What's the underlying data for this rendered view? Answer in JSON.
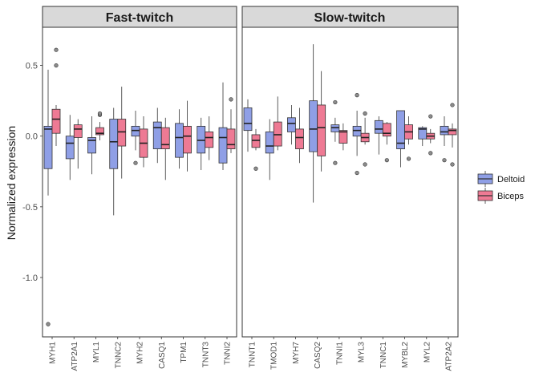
{
  "chart_data": {
    "type": "boxplot",
    "ylabel": "Normalized expression",
    "y_ticks": [
      "0.5",
      "0.0",
      "-0.5",
      "-1.0"
    ],
    "y_tick_values": [
      0.5,
      0.0,
      -0.5,
      -1.0
    ],
    "ylim": [
      -1.42,
      0.77
    ],
    "grid": false,
    "legend_position": "right",
    "series": [
      {
        "name": "Deltoid",
        "color": "#8F9FE6"
      },
      {
        "name": "Biceps",
        "color": "#EE7A94"
      }
    ],
    "panels": [
      {
        "title": "Fast-twitch",
        "categories": [
          "MYH1",
          "ATP2A1",
          "MYL1",
          "TNNC2",
          "MYH2",
          "CASQ1",
          "TPM1",
          "TNNT3",
          "TNNI2"
        ],
        "boxes": [
          [
            {
              "wl": -0.42,
              "q1": -0.23,
              "med": 0.05,
              "q3": 0.07,
              "wh": 0.47,
              "out": [
                -1.33
              ]
            },
            {
              "wl": -0.07,
              "q1": 0.02,
              "med": 0.12,
              "q3": 0.19,
              "wh": 0.22,
              "out": [
                0.5,
                0.61
              ]
            }
          ],
          [
            {
              "wl": -0.31,
              "q1": -0.16,
              "med": -0.05,
              "q3": 0.0,
              "wh": 0.15,
              "out": []
            },
            {
              "wl": -0.23,
              "q1": -0.01,
              "med": 0.05,
              "q3": 0.08,
              "wh": 0.12,
              "out": []
            }
          ],
          [
            {
              "wl": -0.27,
              "q1": -0.12,
              "med": -0.03,
              "q3": -0.01,
              "wh": 0.14,
              "out": []
            },
            {
              "wl": -0.03,
              "q1": 0.01,
              "med": 0.02,
              "q3": 0.06,
              "wh": 0.1,
              "out": [
                0.15,
                0.16
              ]
            }
          ],
          [
            {
              "wl": -0.56,
              "q1": -0.23,
              "med": -0.04,
              "q3": 0.12,
              "wh": 0.2,
              "out": []
            },
            {
              "wl": -0.3,
              "q1": -0.07,
              "med": 0.03,
              "q3": 0.12,
              "wh": 0.35,
              "out": []
            }
          ],
          [
            {
              "wl": -0.1,
              "q1": 0.0,
              "med": 0.04,
              "q3": 0.07,
              "wh": 0.18,
              "out": [
                -0.19
              ]
            },
            {
              "wl": -0.22,
              "q1": -0.15,
              "med": -0.05,
              "q3": 0.05,
              "wh": 0.14,
              "out": []
            }
          ],
          [
            {
              "wl": -0.19,
              "q1": -0.09,
              "med": 0.06,
              "q3": 0.1,
              "wh": 0.2,
              "out": []
            },
            {
              "wl": -0.31,
              "q1": -0.09,
              "med": -0.06,
              "q3": 0.06,
              "wh": 0.13,
              "out": []
            }
          ],
          [
            {
              "wl": -0.23,
              "q1": -0.15,
              "med": -0.01,
              "q3": 0.09,
              "wh": 0.19,
              "out": []
            },
            {
              "wl": -0.25,
              "q1": -0.12,
              "med": 0.0,
              "q3": 0.07,
              "wh": 0.25,
              "out": []
            }
          ],
          [
            {
              "wl": -0.24,
              "q1": -0.12,
              "med": -0.03,
              "q3": 0.07,
              "wh": 0.13,
              "out": []
            },
            {
              "wl": -0.17,
              "q1": -0.08,
              "med": -0.01,
              "q3": 0.03,
              "wh": 0.14,
              "out": []
            }
          ],
          [
            {
              "wl": -0.24,
              "q1": -0.19,
              "med": -0.01,
              "q3": 0.06,
              "wh": 0.38,
              "out": []
            },
            {
              "wl": -0.12,
              "q1": -0.09,
              "med": -0.06,
              "q3": 0.05,
              "wh": 0.19,
              "out": [
                0.26
              ]
            }
          ]
        ]
      },
      {
        "title": "Slow-twitch",
        "categories": [
          "TNNT1",
          "TMOD1",
          "MYH7",
          "CASQ2",
          "TNNI1",
          "MYL3",
          "TNNC1",
          "MYBL2",
          "MYL2",
          "ATP2A2"
        ],
        "boxes": [
          [
            {
              "wl": -0.11,
              "q1": 0.04,
              "med": 0.09,
              "q3": 0.2,
              "wh": 0.26,
              "out": []
            },
            {
              "wl": -0.1,
              "q1": -0.08,
              "med": -0.03,
              "q3": 0.01,
              "wh": 0.05,
              "out": [
                -0.23
              ]
            }
          ],
          [
            {
              "wl": -0.31,
              "q1": -0.12,
              "med": -0.07,
              "q3": 0.03,
              "wh": 0.12,
              "out": []
            },
            {
              "wl": -0.1,
              "q1": -0.07,
              "med": 0.01,
              "q3": 0.1,
              "wh": 0.28,
              "out": []
            }
          ],
          [
            {
              "wl": -0.06,
              "q1": 0.03,
              "med": 0.09,
              "q3": 0.13,
              "wh": 0.22,
              "out": []
            },
            {
              "wl": -0.19,
              "q1": -0.09,
              "med": -0.01,
              "q3": 0.05,
              "wh": 0.2,
              "out": []
            }
          ],
          [
            {
              "wl": -0.47,
              "q1": -0.11,
              "med": 0.05,
              "q3": 0.25,
              "wh": 0.65,
              "out": []
            },
            {
              "wl": -0.25,
              "q1": -0.14,
              "med": 0.06,
              "q3": 0.22,
              "wh": 0.46,
              "out": []
            }
          ],
          [
            {
              "wl": -0.04,
              "q1": 0.03,
              "med": 0.06,
              "q3": 0.08,
              "wh": 0.13,
              "out": [
                0.24,
                -0.19
              ]
            },
            {
              "wl": -0.1,
              "q1": -0.05,
              "med": 0.03,
              "q3": 0.04,
              "wh": 0.09,
              "out": []
            }
          ],
          [
            {
              "wl": -0.14,
              "q1": 0.0,
              "med": 0.04,
              "q3": 0.07,
              "wh": 0.18,
              "out": [
                0.29,
                -0.26
              ]
            },
            {
              "wl": -0.06,
              "q1": -0.04,
              "med": -0.01,
              "q3": 0.02,
              "wh": 0.13,
              "out": [
                0.16,
                -0.2
              ]
            }
          ],
          [
            {
              "wl": -0.13,
              "q1": 0.02,
              "med": 0.05,
              "q3": 0.11,
              "wh": 0.14,
              "out": []
            },
            {
              "wl": -0.06,
              "q1": 0.0,
              "med": 0.02,
              "q3": 0.09,
              "wh": 0.1,
              "out": [
                -0.17
              ]
            }
          ],
          [
            {
              "wl": -0.22,
              "q1": -0.09,
              "med": -0.05,
              "q3": 0.18,
              "wh": 0.18,
              "out": []
            },
            {
              "wl": -0.06,
              "q1": -0.02,
              "med": 0.03,
              "q3": 0.08,
              "wh": 0.14,
              "out": [
                -0.16
              ]
            }
          ],
          [
            {
              "wl": -0.07,
              "q1": -0.02,
              "med": 0.05,
              "q3": 0.06,
              "wh": 0.07,
              "out": []
            },
            {
              "wl": -0.05,
              "q1": -0.02,
              "med": 0.0,
              "q3": 0.02,
              "wh": 0.05,
              "out": [
                0.14,
                -0.12
              ]
            }
          ],
          [
            {
              "wl": -0.07,
              "q1": 0.01,
              "med": 0.03,
              "q3": 0.07,
              "wh": 0.14,
              "out": [
                -0.17
              ]
            },
            {
              "wl": -0.08,
              "q1": 0.01,
              "med": 0.04,
              "q3": 0.05,
              "wh": 0.09,
              "out": [
                0.22,
                -0.2
              ]
            }
          ]
        ]
      }
    ]
  }
}
